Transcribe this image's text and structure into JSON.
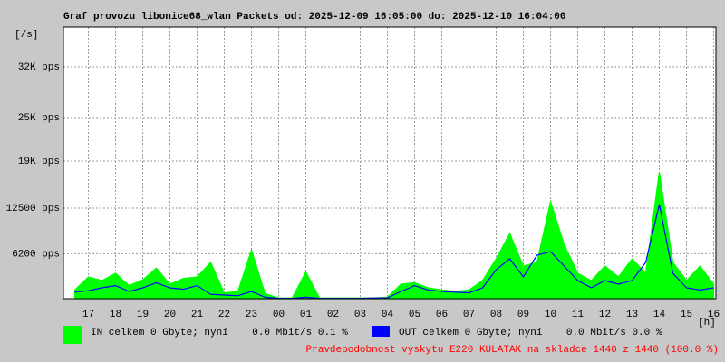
{
  "chart_data": {
    "type": "line",
    "title": "Graf provozu libonice68_wlan Packets od: 2025-12-09 16:05:00 do: 2025-12-10 16:04:00",
    "y_unit": "[/s]",
    "x_unit": "[h]",
    "xlim": [
      0.083,
      24.083
    ],
    "ylim": [
      0,
      37500
    ],
    "grid": true,
    "xticks": [
      {
        "value": 1,
        "label": "17"
      },
      {
        "value": 2,
        "label": "18"
      },
      {
        "value": 3,
        "label": "19"
      },
      {
        "value": 4,
        "label": "20"
      },
      {
        "value": 5,
        "label": "21"
      },
      {
        "value": 6,
        "label": "22"
      },
      {
        "value": 7,
        "label": "23"
      },
      {
        "value": 8,
        "label": "00"
      },
      {
        "value": 9,
        "label": "01"
      },
      {
        "value": 10,
        "label": "02"
      },
      {
        "value": 11,
        "label": "03"
      },
      {
        "value": 12,
        "label": "04"
      },
      {
        "value": 13,
        "label": "05"
      },
      {
        "value": 14,
        "label": "06"
      },
      {
        "value": 15,
        "label": "07"
      },
      {
        "value": 16,
        "label": "08"
      },
      {
        "value": 17,
        "label": "09"
      },
      {
        "value": 18,
        "label": "10"
      },
      {
        "value": 19,
        "label": "11"
      },
      {
        "value": 20,
        "label": "12"
      },
      {
        "value": 21,
        "label": "13"
      },
      {
        "value": 22,
        "label": "14"
      },
      {
        "value": 23,
        "label": "15"
      },
      {
        "value": 24,
        "label": "16"
      }
    ],
    "yticks": [
      {
        "value": 6200,
        "label": "6200 pps"
      },
      {
        "value": 12500,
        "label": "12500 pps"
      },
      {
        "value": 19000,
        "label": "19K pps"
      },
      {
        "value": 25000,
        "label": "25K pps"
      },
      {
        "value": 32000,
        "label": "32K pps"
      }
    ],
    "x": [
      0.5,
      1,
      1.5,
      2,
      2.5,
      3,
      3.5,
      4,
      4.5,
      5,
      5.5,
      6,
      6.5,
      7,
      7.5,
      8,
      8.5,
      9,
      9.5,
      10,
      10.5,
      11,
      11.5,
      12,
      12.5,
      13,
      13.5,
      14,
      14.5,
      15,
      15.5,
      16,
      16.5,
      17,
      17.5,
      18,
      18.5,
      19,
      19.5,
      20,
      20.5,
      21,
      21.5,
      22,
      22.5,
      23,
      23.5,
      24
    ],
    "series": [
      {
        "name": "IN celkem 0 Gbyte; nyní    0.0 Mbit/s 0.1 %",
        "color": "#00ff00",
        "style": "area",
        "values": [
          1200,
          3000,
          2500,
          3500,
          1800,
          2600,
          4200,
          2000,
          2800,
          3000,
          5000,
          800,
          1000,
          6700,
          700,
          100,
          100,
          3700,
          100,
          100,
          100,
          100,
          100,
          200,
          2000,
          2200,
          1500,
          1200,
          1000,
          1200,
          2500,
          5500,
          9000,
          4500,
          5000,
          13400,
          7500,
          3500,
          2500,
          4500,
          3000,
          5500,
          3500,
          17500,
          5000,
          2500,
          4500,
          2000
        ]
      },
      {
        "name": "OUT celkem 0 Gbyte; nyní    0.0 Mbit/s 0.0 %",
        "color": "#0000ff",
        "style": "line",
        "values": [
          900,
          1100,
          1500,
          1800,
          1000,
          1500,
          2200,
          1500,
          1300,
          1800,
          600,
          500,
          400,
          1000,
          200,
          50,
          50,
          200,
          50,
          50,
          50,
          50,
          100,
          100,
          1000,
          1800,
          1200,
          1000,
          900,
          800,
          1500,
          4000,
          5500,
          3000,
          6000,
          6500,
          4500,
          2500,
          1500,
          2500,
          2000,
          2500,
          5000,
          13000,
          3500,
          1500,
          1200,
          1500
        ]
      }
    ],
    "annotation": "Pravdepodobnost vyskytu E220 KULATAK na skladce 1440 z 1440 (100.0 %)"
  }
}
